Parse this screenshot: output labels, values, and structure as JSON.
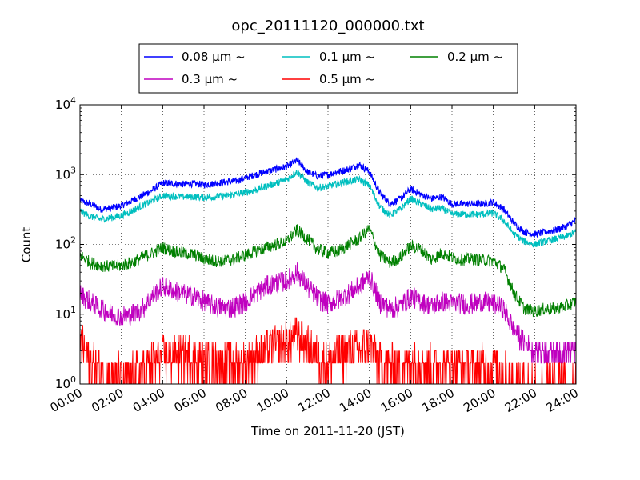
{
  "chart_data": {
    "type": "line",
    "title": "opc_20111120_000000.txt",
    "xlabel": "Time on 2011-11-20 (JST)",
    "ylabel": "Count",
    "yscale": "log",
    "xlim": [
      0,
      24
    ],
    "ylim": [
      1,
      10000
    ],
    "grid": true,
    "legend_position": "top-center",
    "x_tick_labels": [
      "00:00",
      "02:00",
      "04:00",
      "06:00",
      "08:00",
      "10:00",
      "12:00",
      "14:00",
      "16:00",
      "18:00",
      "20:00",
      "22:00",
      "24:00"
    ],
    "y_ticks": [
      {
        "base": "10",
        "exp": "0"
      },
      {
        "base": "10",
        "exp": "1"
      },
      {
        "base": "10",
        "exp": "2"
      },
      {
        "base": "10",
        "exp": "3"
      },
      {
        "base": "10",
        "exp": "4"
      }
    ],
    "x_hours": [
      0,
      0.5,
      1,
      1.5,
      2,
      2.5,
      3,
      3.5,
      4,
      4.5,
      5,
      5.5,
      6,
      6.5,
      7,
      7.5,
      8,
      8.5,
      9,
      9.5,
      10,
      10.5,
      11,
      11.5,
      12,
      12.5,
      13,
      13.5,
      14,
      14.5,
      15,
      15.5,
      16,
      16.5,
      17,
      17.5,
      18,
      18.5,
      19,
      19.5,
      20,
      20.5,
      21,
      21.5,
      22,
      22.5,
      23,
      23.5,
      24
    ],
    "series": [
      {
        "name": "0.08 µm ~",
        "color": "#0000ff",
        "values": [
          420,
          380,
          320,
          330,
          360,
          420,
          500,
          600,
          760,
          750,
          730,
          740,
          720,
          740,
          780,
          800,
          900,
          1000,
          1100,
          1200,
          1300,
          1600,
          1100,
          950,
          1000,
          1100,
          1200,
          1400,
          1100,
          550,
          380,
          450,
          620,
          520,
          450,
          480,
          380,
          380,
          380,
          380,
          400,
          320,
          200,
          150,
          140,
          150,
          160,
          180,
          220
        ]
      },
      {
        "name": "0.1 µm ~",
        "color": "#00bfbf",
        "values": [
          300,
          250,
          230,
          240,
          260,
          300,
          360,
          420,
          500,
          490,
          480,
          480,
          470,
          480,
          500,
          520,
          560,
          600,
          680,
          760,
          850,
          1100,
          780,
          650,
          680,
          750,
          800,
          850,
          700,
          350,
          260,
          320,
          450,
          380,
          320,
          330,
          270,
          270,
          270,
          270,
          280,
          220,
          140,
          110,
          100,
          110,
          120,
          130,
          150
        ]
      },
      {
        "name": "0.2 µm ~",
        "color": "#008000",
        "values": [
          70,
          55,
          50,
          48,
          50,
          55,
          65,
          75,
          90,
          80,
          75,
          72,
          62,
          58,
          58,
          62,
          70,
          80,
          90,
          100,
          110,
          160,
          120,
          85,
          75,
          80,
          100,
          120,
          170,
          70,
          55,
          65,
          95,
          85,
          60,
          75,
          65,
          60,
          62,
          60,
          58,
          45,
          20,
          12,
          11,
          12,
          12,
          13,
          15
        ]
      },
      {
        "name": "0.3 µm ~",
        "color": "#bf00bf",
        "values": [
          20,
          15,
          12,
          10,
          9,
          10,
          12,
          18,
          25,
          22,
          20,
          18,
          15,
          13,
          12,
          13,
          15,
          20,
          25,
          28,
          30,
          40,
          25,
          17,
          14,
          16,
          20,
          25,
          35,
          15,
          12,
          13,
          18,
          15,
          13,
          15,
          14,
          14,
          14,
          15,
          14,
          12,
          6,
          4,
          3,
          3,
          3,
          3,
          3
        ]
      },
      {
        "name": "0.5 µm ~",
        "color": "#ff0000",
        "values": [
          4,
          2,
          1.5,
          1.3,
          1.3,
          1.3,
          1.5,
          2,
          2.5,
          2.5,
          2.5,
          2.5,
          2,
          2,
          2,
          2,
          2,
          2.5,
          3,
          3.5,
          4,
          5,
          3.5,
          2.5,
          2,
          2.5,
          3,
          3,
          4,
          2,
          1.8,
          1.8,
          2,
          2,
          1.8,
          2,
          1.8,
          1.8,
          1.8,
          1.8,
          1.8,
          1.5,
          1,
          1,
          1,
          1,
          1,
          1,
          1
        ]
      }
    ]
  }
}
